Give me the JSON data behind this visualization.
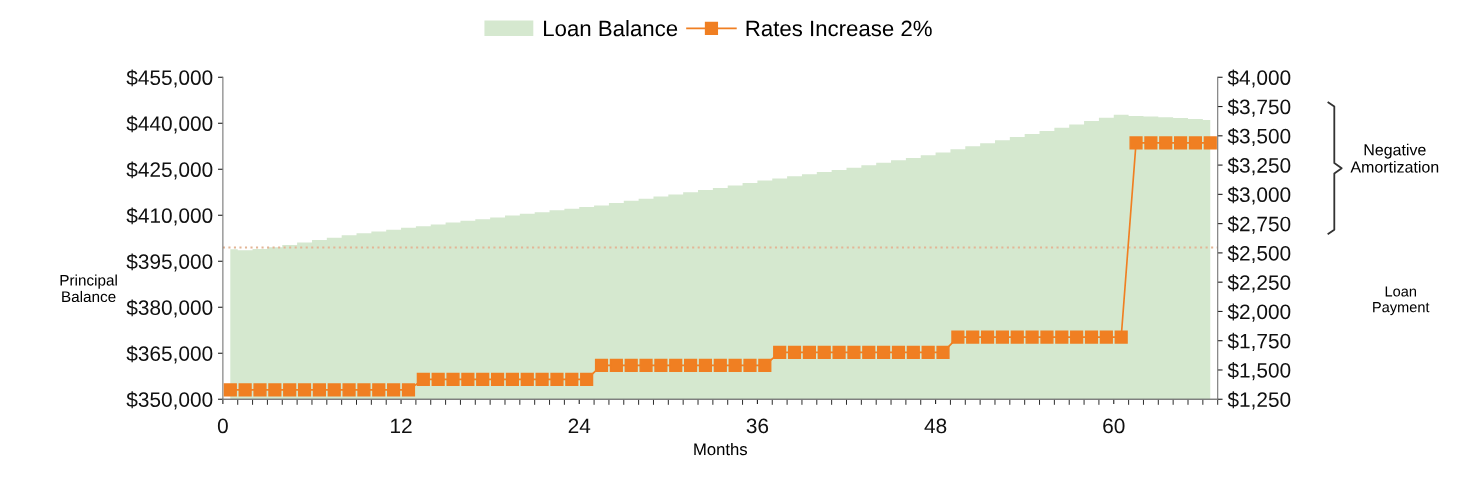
{
  "chart_data": {
    "type": "line",
    "xlabel": "Months",
    "ylabel": "Principal\nBalance",
    "annotations": [
      "Negative\nAmortization",
      "Loan\nPayment"
    ],
    "x": [
      0.5,
      1.5,
      2.5,
      3.5,
      4.5,
      5.5,
      6.5,
      7.5,
      8.5,
      9.5,
      10.5,
      11.5,
      12.5,
      13.5,
      14.5,
      15.5,
      16.5,
      17.5,
      18.5,
      19.5,
      20.5,
      21.5,
      22.5,
      23.5,
      24.5,
      25.5,
      26.5,
      27.5,
      28.5,
      29.5,
      30.5,
      31.5,
      32.5,
      33.5,
      34.5,
      35.5,
      36.5,
      37.5,
      38.5,
      39.5,
      40.5,
      41.5,
      42.5,
      43.5,
      44.5,
      45.5,
      46.5,
      47.5,
      48.5,
      49.5,
      50.5,
      51.5,
      52.5,
      53.5,
      54.5,
      55.5,
      56.5,
      57.5,
      58.5,
      59.5,
      60.5,
      61.5,
      62.5,
      63.5,
      64.5,
      65.5,
      66.5
    ],
    "series": [
      {
        "name": "Loan Balance",
        "type": "area",
        "color": "#d5e8cf",
        "values": [
          398900,
          398600,
          399000,
          399600,
          400300,
          401100,
          401900,
          402700,
          403500,
          404100,
          404700,
          405300,
          405900,
          406400,
          407000,
          407600,
          408200,
          408700,
          409300,
          409900,
          410500,
          411000,
          411600,
          412100,
          412700,
          413200,
          414000,
          414700,
          415400,
          416100,
          416800,
          417500,
          418200,
          418900,
          419700,
          420500,
          421300,
          422000,
          422700,
          423400,
          424100,
          424800,
          425500,
          426300,
          427100,
          427900,
          428700,
          429600,
          430500,
          431500,
          432500,
          433500,
          434500,
          435500,
          436500,
          437500,
          438500,
          439600,
          440700,
          441800,
          442800,
          442400,
          442200,
          442000,
          441700,
          441400,
          441100
        ]
      },
      {
        "name": "Rates Increase 2%",
        "axis": "y2",
        "color": "#f07f22",
        "marker": "square",
        "line_style": "solid",
        "values": [
          1330,
          1330,
          1330,
          1330,
          1330,
          1330,
          1330,
          1330,
          1330,
          1330,
          1330,
          1330,
          1330,
          1420,
          1420,
          1420,
          1420,
          1420,
          1420,
          1420,
          1420,
          1420,
          1420,
          1420,
          1420,
          1540,
          1540,
          1540,
          1540,
          1540,
          1540,
          1540,
          1540,
          1540,
          1540,
          1540,
          1540,
          1650,
          1650,
          1650,
          1650,
          1650,
          1650,
          1650,
          1650,
          1650,
          1650,
          1650,
          1650,
          1780,
          1780,
          1780,
          1780,
          1780,
          1780,
          1780,
          1780,
          1780,
          1780,
          1780,
          1780,
          3440,
          3440,
          3440,
          3440,
          3440,
          3440
        ]
      }
    ],
    "xlim": [
      0,
      67
    ],
    "xticks": [
      0,
      12,
      24,
      36,
      48,
      60
    ],
    "ylim": [
      350000,
      455000
    ],
    "yticks": [
      {
        "value": 350000,
        "label": "$350,000"
      },
      {
        "value": 365000,
        "label": "$365,000"
      },
      {
        "value": 380000,
        "label": "$380,000"
      },
      {
        "value": 395000,
        "label": "$395,000"
      },
      {
        "value": 410000,
        "label": "$410,000"
      },
      {
        "value": 425000,
        "label": "$425,000"
      },
      {
        "value": 440000,
        "label": "$440,000"
      },
      {
        "value": 455000,
        "label": "$455,000"
      }
    ],
    "y2lim": [
      1250,
      4000
    ],
    "y2ticks": [
      {
        "value": 1250,
        "label": "$1,250"
      },
      {
        "value": 1500,
        "label": "$1,500"
      },
      {
        "value": 1750,
        "label": "$1,750"
      },
      {
        "value": 2000,
        "label": "$2,000"
      },
      {
        "value": 2250,
        "label": "$2,250"
      },
      {
        "value": 2500,
        "label": "$2,500"
      },
      {
        "value": 2750,
        "label": "$2,750"
      },
      {
        "value": 3000,
        "label": "$3,000"
      },
      {
        "value": 3250,
        "label": "$3,250"
      },
      {
        "value": 3500,
        "label": "$3,500"
      },
      {
        "value": 3750,
        "label": "$3,750"
      },
      {
        "value": 4000,
        "label": "$4,000"
      }
    ],
    "ref_lines": [
      {
        "axis": "y",
        "value": 399500,
        "color": "#e3b596",
        "line_style": "dotted"
      }
    ],
    "legend": "top",
    "grid": false
  }
}
